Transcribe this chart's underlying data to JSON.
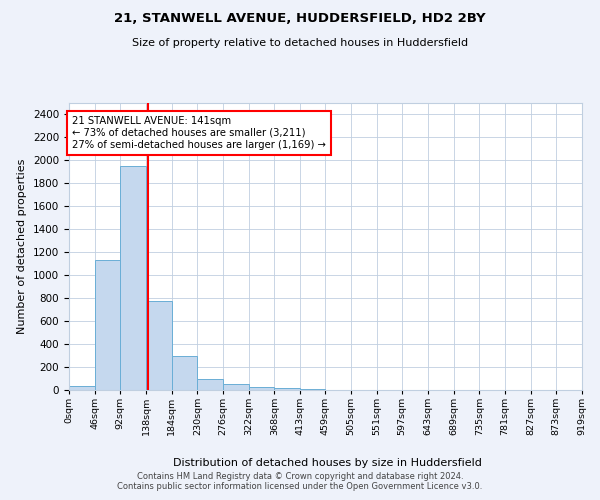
{
  "title1": "21, STANWELL AVENUE, HUDDERSFIELD, HD2 2BY",
  "title2": "Size of property relative to detached houses in Huddersfield",
  "xlabel": "Distribution of detached houses by size in Huddersfield",
  "ylabel": "Number of detached properties",
  "bin_edges": [
    0,
    46,
    92,
    138,
    184,
    230,
    276,
    322,
    368,
    413,
    459,
    505,
    551,
    597,
    643,
    689,
    735,
    781,
    827,
    873,
    919
  ],
  "bar_heights": [
    35,
    1130,
    1950,
    770,
    300,
    100,
    50,
    30,
    15,
    8,
    4,
    2,
    1,
    1,
    0,
    0,
    0,
    0,
    0,
    0
  ],
  "bar_color": "#c5d8ee",
  "bar_edgecolor": "#6aaed6",
  "property_size": 141,
  "vline_color": "red",
  "annotation_text": "21 STANWELL AVENUE: 141sqm\n← 73% of detached houses are smaller (3,211)\n27% of semi-detached houses are larger (1,169) →",
  "annotation_box_color": "white",
  "annotation_box_edgecolor": "red",
  "ylim": [
    0,
    2500
  ],
  "yticks": [
    0,
    200,
    400,
    600,
    800,
    1000,
    1200,
    1400,
    1600,
    1800,
    2000,
    2200,
    2400
  ],
  "footer_text": "Contains HM Land Registry data © Crown copyright and database right 2024.\nContains public sector information licensed under the Open Government Licence v3.0.",
  "bg_color": "#eef2fa",
  "plot_bg_color": "white",
  "grid_color": "#c0cfe0"
}
